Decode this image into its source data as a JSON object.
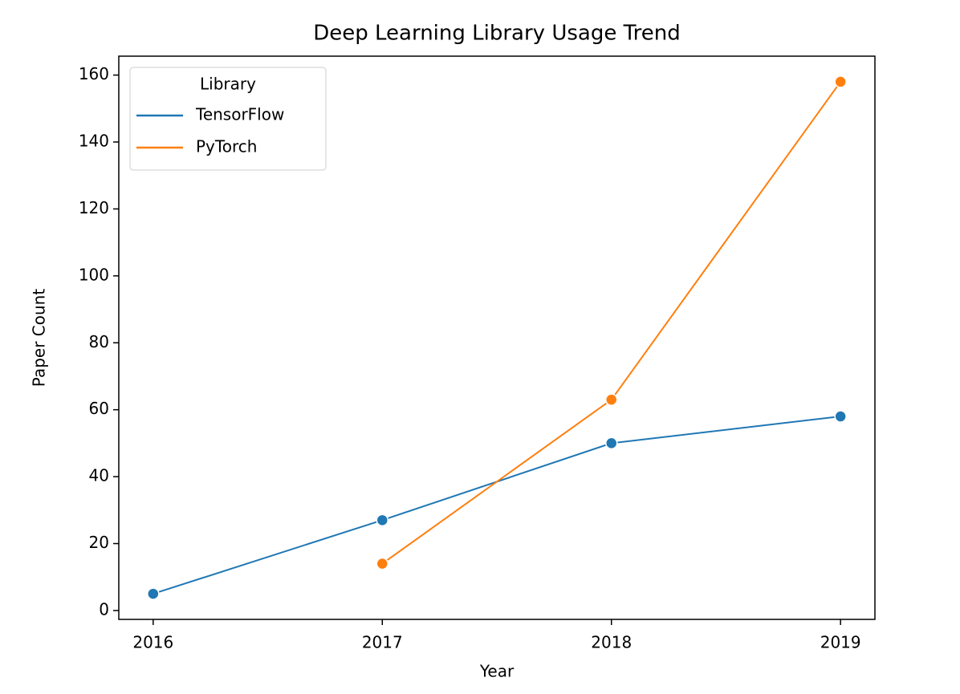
{
  "chart_data": {
    "type": "line",
    "title": "Deep Learning Library Usage Trend",
    "x_label": "Year",
    "y_label": "Paper Count",
    "x": [
      2016,
      2017,
      2018,
      2019
    ],
    "series": [
      {
        "name": "TensorFlow",
        "color": "#1f77b4",
        "values": [
          5,
          27,
          50,
          58
        ]
      },
      {
        "name": "PyTorch",
        "color": "#ff7f0e",
        "values": [
          null,
          14,
          63,
          158
        ]
      }
    ],
    "xlim": [
      2015.85,
      2019.15
    ],
    "xticks": [
      2016,
      2017,
      2018,
      2019
    ],
    "ylim": [
      -2.65,
      165.65
    ],
    "yticks": [
      0,
      20,
      40,
      60,
      80,
      100,
      120,
      140,
      160
    ],
    "grid": false,
    "legend_title": "Library",
    "legend_position": "upper-left",
    "markers": true
  }
}
